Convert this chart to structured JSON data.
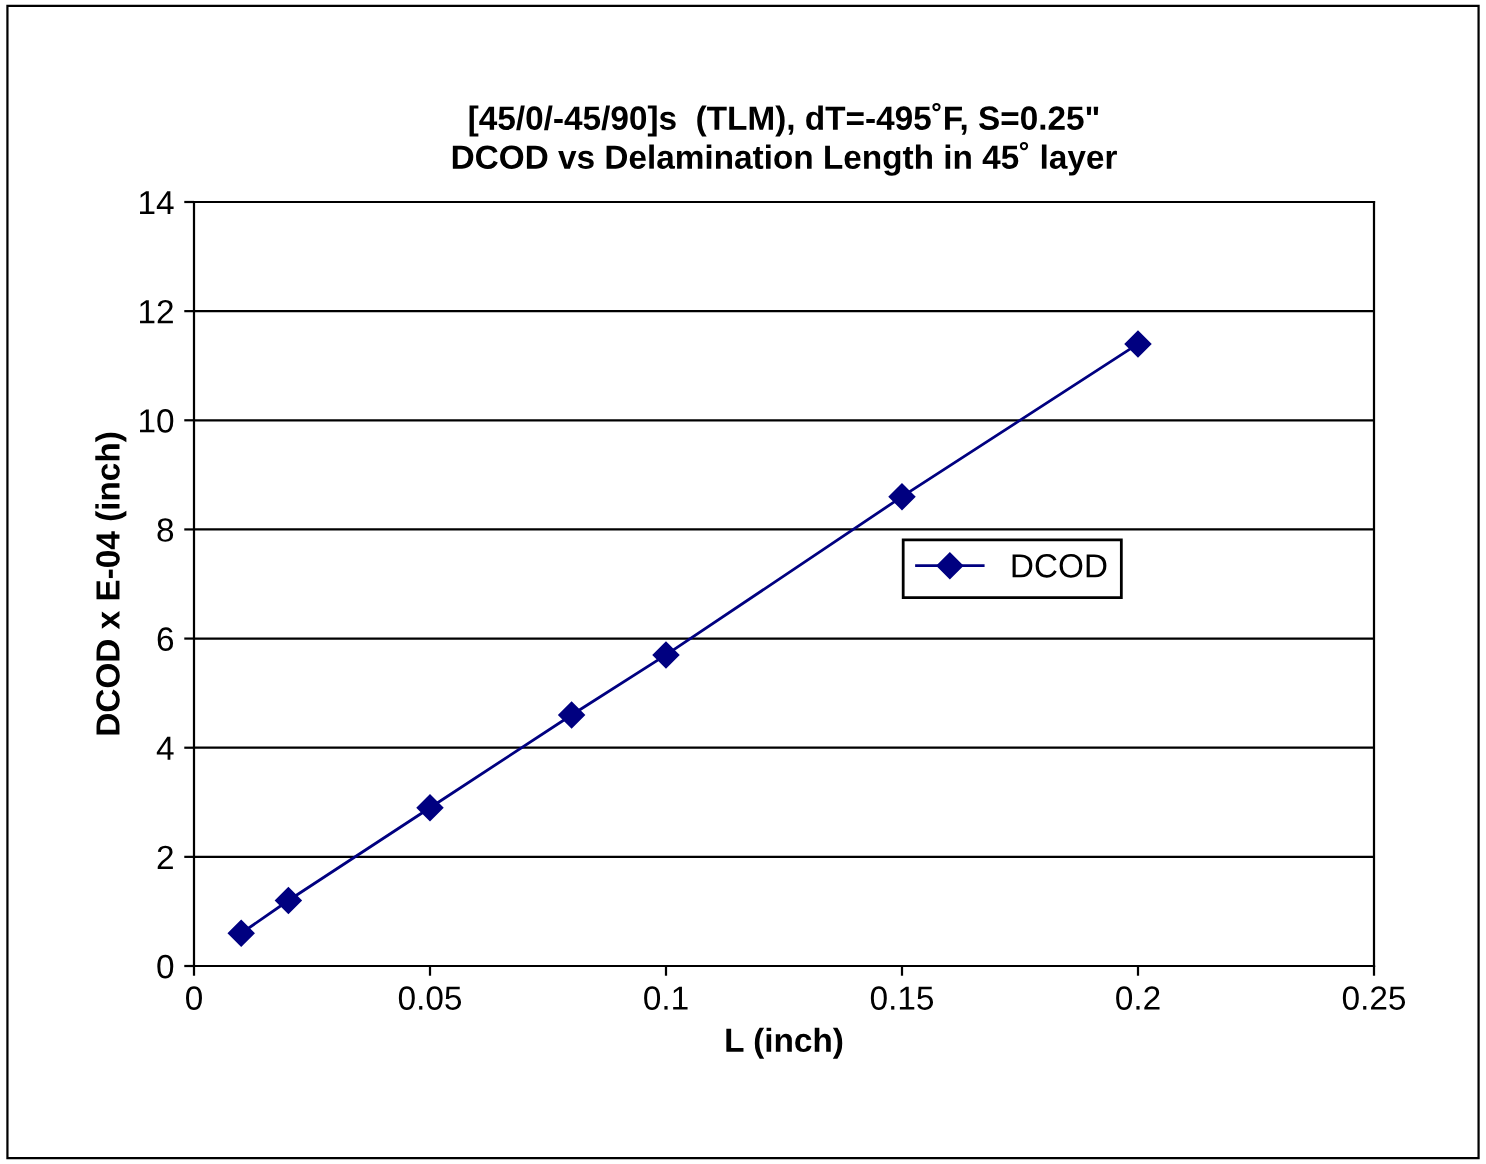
{
  "chart_data": {
    "type": "line",
    "title": "[45/0/-45/90]s  (TLM), dT=-495˚F, S=0.25\"\nDCOD vs Delamination Length in 45˚ layer",
    "xlabel": "L (inch)",
    "ylabel": "DCOD x E-04 (inch)",
    "x": [
      0.01,
      0.02,
      0.05,
      0.08,
      0.1,
      0.15,
      0.2
    ],
    "series": [
      {
        "name": "DCOD",
        "color": "#000080",
        "values": [
          0.6,
          1.2,
          2.9,
          4.6,
          5.7,
          8.6,
          11.4
        ]
      }
    ],
    "xlim": [
      0,
      0.25
    ],
    "xticks": [
      0,
      0.05,
      0.1,
      0.15,
      0.2,
      0.25
    ],
    "ylim": [
      0,
      14
    ],
    "yticks": [
      0,
      2,
      4,
      6,
      8,
      10,
      12,
      14
    ],
    "grid": "y",
    "legend": "right",
    "marker": "diamond",
    "line_style": "solid"
  }
}
